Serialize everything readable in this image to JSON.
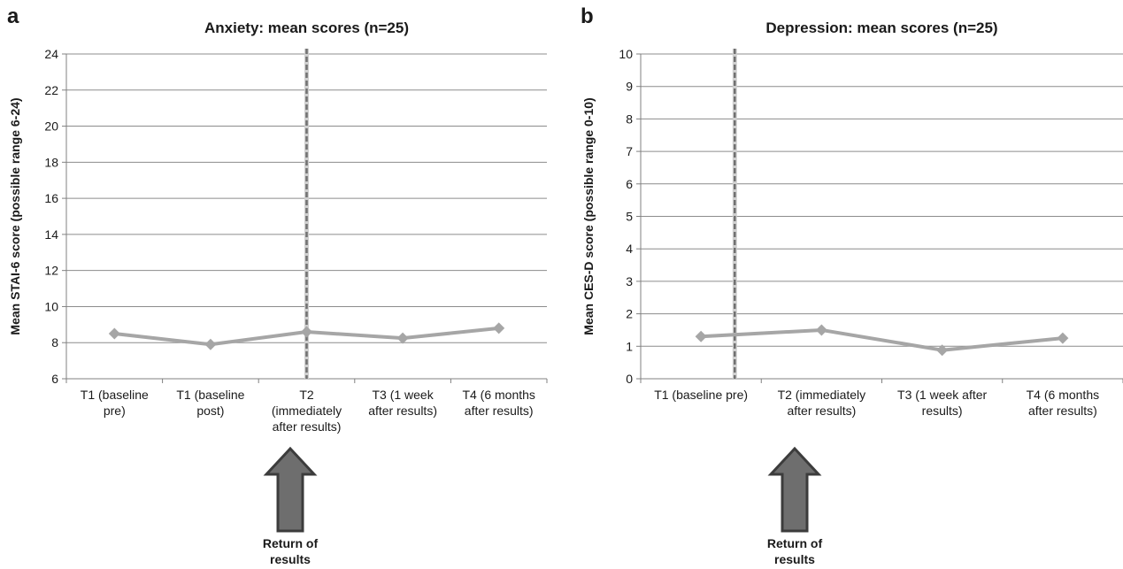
{
  "chart_data": [
    {
      "panel": "a",
      "type": "line",
      "title": "Anxiety: mean scores (n=25)",
      "ylabel": "Mean STAI-6  score (possible range 6-24)",
      "xlabel": "",
      "ylim": [
        6,
        24
      ],
      "yticks": [
        6,
        8,
        10,
        12,
        14,
        16,
        18,
        20,
        22,
        24
      ],
      "grid": true,
      "categories": [
        [
          "T1 (baseline",
          "pre)"
        ],
        [
          "T1 (baseline",
          "post)"
        ],
        [
          "T2",
          "(immediately",
          "after results)"
        ],
        [
          "T3 (1 week",
          "after results)"
        ],
        [
          "T4 (6 months",
          "after results)"
        ]
      ],
      "series": [
        {
          "values": [
            8.5,
            7.9,
            8.6,
            8.25,
            8.8
          ],
          "color": "#a6a6a6"
        }
      ],
      "marker_line_index": 2,
      "annotation": [
        "Return of",
        "results"
      ]
    },
    {
      "panel": "b",
      "type": "line",
      "title": "Depression: mean scores (n=25)",
      "ylabel": "Mean CES-D  score (possible range 0-10)",
      "xlabel": "",
      "ylim": [
        0,
        10
      ],
      "yticks": [
        0,
        1,
        2,
        3,
        4,
        5,
        6,
        7,
        8,
        9,
        10
      ],
      "grid": true,
      "categories": [
        [
          "T1 (baseline pre)"
        ],
        [
          "T2 (immediately",
          "after results)"
        ],
        [
          "T3 (1 week after",
          "results)"
        ],
        [
          "T4 (6 months",
          "after results)"
        ]
      ],
      "series": [
        {
          "values": [
            1.3,
            1.5,
            0.88,
            1.25
          ],
          "color": "#a6a6a6"
        }
      ],
      "marker_line_fraction": 0.78,
      "annotation": [
        "Return of",
        "results"
      ]
    }
  ],
  "colors": {
    "line": "#a6a6a6",
    "grid": "#8c8c8c",
    "axis": "#808080",
    "divider": "#707070",
    "arrow_fill": "#6e6e6e",
    "arrow_stroke": "#3c3c3c"
  }
}
